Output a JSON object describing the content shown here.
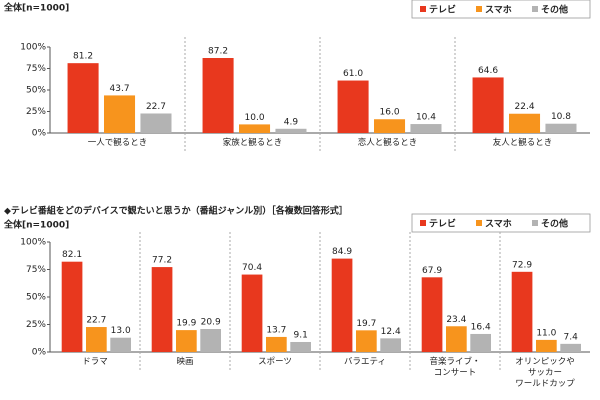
{
  "chart_data": [
    {
      "type": "bar",
      "subtitle": "全体[n=1000]",
      "categories": [
        "一人で観るとき",
        "家族と観るとき",
        "恋人と観るとき",
        "友人と観るとき"
      ],
      "series": [
        {
          "name": "テレビ",
          "color": "#e8381e",
          "values": [
            81.2,
            87.2,
            61.0,
            64.6
          ],
          "value_labels": [
            "81.2",
            "87.2",
            "61.0",
            "64.6"
          ]
        },
        {
          "name": "スマホ",
          "color": "#f7941d",
          "values": [
            43.7,
            10.0,
            16.0,
            22.4
          ],
          "value_labels": [
            "43.7",
            "10.0",
            "16.0",
            "22.4"
          ]
        },
        {
          "name": "その他",
          "color": "#b3b3b3",
          "values": [
            22.7,
            4.9,
            10.4,
            10.8
          ],
          "value_labels": [
            "22.7",
            "4.9",
            "10.4",
            "10.8"
          ]
        }
      ],
      "ylim": [
        0,
        100
      ],
      "yticks": [
        {
          "value": 0,
          "label": "0%"
        },
        {
          "value": 25,
          "label": "25%"
        },
        {
          "value": 50,
          "label": "50%"
        },
        {
          "value": 75,
          "label": "75%"
        },
        {
          "value": 100,
          "label": "100%"
        }
      ]
    },
    {
      "type": "bar",
      "title": "◆テレビ番組をどのデバイスで観たいと思うか（番組ジャンル別）［各複数回答形式］",
      "subtitle": "全体[n=1000]",
      "categories": [
        "ドラマ",
        "映画",
        "スポーツ",
        "バラエティ",
        "音楽ライブ・\nコンサート",
        "オリンピックや\nサッカー\nワールドカップ"
      ],
      "series": [
        {
          "name": "テレビ",
          "color": "#e8381e",
          "values": [
            82.1,
            77.2,
            70.4,
            84.9,
            67.9,
            72.9
          ],
          "value_labels": [
            "82.1",
            "77.2",
            "70.4",
            "84.9",
            "67.9",
            "72.9"
          ]
        },
        {
          "name": "スマホ",
          "color": "#f7941d",
          "values": [
            22.7,
            19.9,
            13.7,
            19.7,
            23.4,
            11.0
          ],
          "value_labels": [
            "22.7",
            "19.9",
            "13.7",
            "19.7",
            "23.4",
            "11.0"
          ]
        },
        {
          "name": "その他",
          "color": "#b3b3b3",
          "values": [
            13.0,
            20.9,
            9.1,
            12.4,
            16.4,
            7.4
          ],
          "value_labels": [
            "13.0",
            "20.9",
            "9.1",
            "12.4",
            "16.4",
            "7.4"
          ]
        }
      ],
      "ylim": [
        0,
        100
      ],
      "yticks": [
        {
          "value": 0,
          "label": "0%"
        },
        {
          "value": 25,
          "label": "25%"
        },
        {
          "value": 50,
          "label": "50%"
        },
        {
          "value": 75,
          "label": "75%"
        },
        {
          "value": 100,
          "label": "100%"
        }
      ]
    }
  ]
}
